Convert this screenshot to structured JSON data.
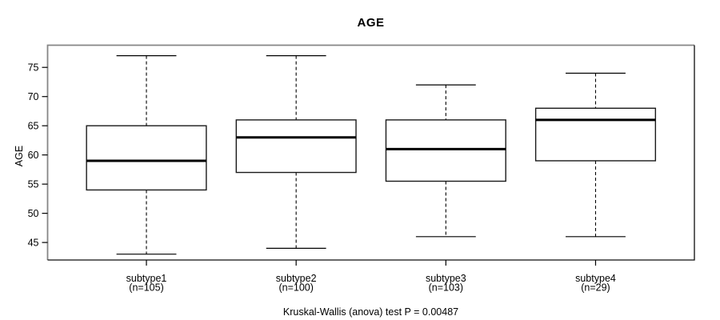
{
  "chart_data": {
    "type": "boxplot",
    "title": "AGE",
    "ylabel": "AGE",
    "xlabel": "",
    "caption": "Kruskal-Wallis (anova) test P = 0.00487",
    "y_ticks": [
      45,
      50,
      55,
      60,
      65,
      70,
      75
    ],
    "ylim": [
      42,
      78.8
    ],
    "grid": false,
    "legend": "none",
    "groups": [
      {
        "label": "subtype1",
        "sublabel": "(n=105)",
        "n": 105,
        "low": 43,
        "q1": 54,
        "median": 59,
        "q3": 65,
        "high": 77
      },
      {
        "label": "subtype2",
        "sublabel": "(n=100)",
        "n": 100,
        "low": 44,
        "q1": 57,
        "median": 63,
        "q3": 66,
        "high": 77
      },
      {
        "label": "subtype3",
        "sublabel": "(n=103)",
        "n": 103,
        "low": 46,
        "q1": 55.5,
        "median": 61,
        "q3": 66,
        "high": 72
      },
      {
        "label": "subtype4",
        "sublabel": "(n=29)",
        "n": 29,
        "low": 46,
        "q1": 59,
        "median": 66,
        "q3": 68,
        "high": 74
      }
    ],
    "colors": {
      "background": "#ffffff",
      "text": "#000000",
      "box_fill": "#ffffff",
      "box_border": "#1a1a1a",
      "median": "#000000",
      "whisker": "#000000",
      "frame_top_left": "#868686",
      "frame_bottom_right": "#0d0d0d"
    }
  }
}
